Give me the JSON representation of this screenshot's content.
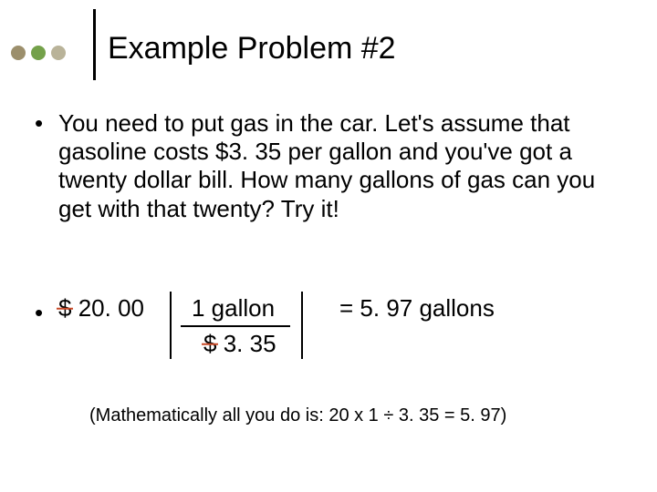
{
  "colors": {
    "dot1": "#9c8f6c",
    "dot2": "#74a14a",
    "dot3": "#b9b399",
    "strike": "#c94a28",
    "text": "#000000",
    "bg": "#ffffff"
  },
  "title": "Example Problem #2",
  "body": "You need to put gas in the car. Let's assume that gasoline costs $3. 35 per gallon and you've got a twenty dollar bill. How many gallons of gas can you get with that twenty? Try it!",
  "da": {
    "left_currency": "$",
    "left_value": "20. 00",
    "top_numer": "1 gallon",
    "bottom_currency": "$",
    "bottom_value": "3. 35",
    "result": "=  5. 97 gallons"
  },
  "footnote": "(Mathematically all you do is: 20 x 1 ÷ 3. 35 = 5. 97)"
}
